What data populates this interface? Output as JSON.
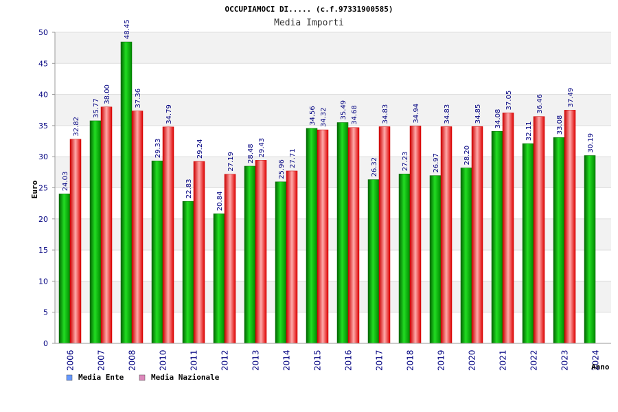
{
  "chart_data": {
    "type": "bar",
    "title": "OCCUPIAMOCI DI..... (c.f.97331900585)",
    "subtitle": "Media Importi",
    "ylabel": "Euro",
    "xlabel": "Anno",
    "ylim": [
      0,
      50
    ],
    "yticks": [
      0,
      5,
      10,
      15,
      20,
      25,
      30,
      35,
      40,
      45,
      50
    ],
    "categories": [
      "2006",
      "2007",
      "2008",
      "2010",
      "2011",
      "2012",
      "2013",
      "2014",
      "2015",
      "2016",
      "2017",
      "2018",
      "2019",
      "2020",
      "2021",
      "2022",
      "2023",
      "2024"
    ],
    "series": [
      {
        "name": "Media Ente",
        "color": "#009900",
        "legend_color": "#6699ff",
        "values": [
          24.03,
          35.77,
          48.45,
          29.33,
          22.83,
          20.84,
          28.48,
          25.96,
          34.56,
          35.49,
          26.32,
          27.23,
          26.97,
          28.2,
          34.08,
          32.11,
          33.08,
          30.19
        ],
        "labels": [
          "24.03",
          "35.77",
          "48.45",
          "29.33",
          "22.83",
          "20.84",
          "28.48",
          "25.96",
          "34.56",
          "35.49",
          "26.32",
          "27.23",
          "26.97",
          "28.20",
          "34.08",
          "32.11",
          "33.08",
          "30.19"
        ]
      },
      {
        "name": "Media Nazionale",
        "color": "#e8121a",
        "legend_color": "#dd88bb",
        "values": [
          32.82,
          38.0,
          37.36,
          34.79,
          29.24,
          27.19,
          29.43,
          27.71,
          34.32,
          34.68,
          34.83,
          34.94,
          34.83,
          34.85,
          37.05,
          36.46,
          37.49,
          null
        ],
        "labels": [
          "32.82",
          "38.00",
          "37.36",
          "34.79",
          "29.24",
          "27.19",
          "29.43",
          "27.71",
          "34.32",
          "34.68",
          "34.83",
          "34.94",
          "34.83",
          "34.85",
          "37.05",
          "36.46",
          "37.49",
          null
        ]
      }
    ],
    "grid": true,
    "legend_position": "bottom-left"
  }
}
